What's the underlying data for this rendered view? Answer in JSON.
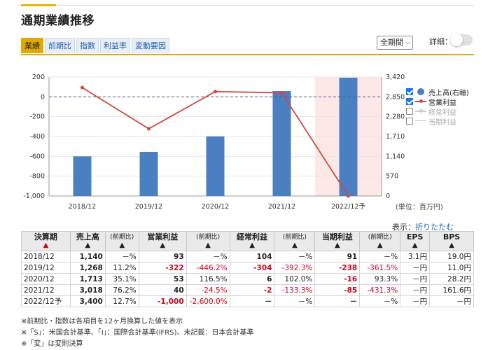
{
  "title": "通期業績推移",
  "tabs": [
    {
      "label": "業績",
      "active": true
    },
    {
      "label": "前期比",
      "active": false
    },
    {
      "label": "指数",
      "active": false
    },
    {
      "label": "利益率",
      "active": false
    },
    {
      "label": "変動要因",
      "active": false
    }
  ],
  "period_select": {
    "value": "全期間",
    "icon": "chevron-down-icon"
  },
  "detail_toggle": {
    "label": "詳細：",
    "on": false
  },
  "chart_data": {
    "type": "bar",
    "categories": [
      "2018/12",
      "2019/12",
      "2020/12",
      "2021/12",
      "2022/12予"
    ],
    "series": [
      {
        "name": "売上高(右軸)",
        "type": "bar",
        "axis": "right",
        "values": [
          1140,
          1268,
          1713,
          3018,
          3400
        ],
        "color": "#4a7fc1"
      },
      {
        "name": "営業利益",
        "type": "line",
        "axis": "left",
        "values": [
          93,
          -322,
          53,
          40,
          -1000
        ],
        "color": "#cf4a3d"
      }
    ],
    "left_axis": {
      "min": -1000,
      "max": 200,
      "ticks": [
        "200",
        "0",
        "-200",
        "-400",
        "-600",
        "-800",
        "-1,000"
      ]
    },
    "right_axis": {
      "min": 0,
      "max": 3420,
      "ticks": [
        "3,420",
        "2,850",
        "2,280",
        "1,710",
        "1,140",
        "570",
        "0"
      ]
    },
    "forecast_highlight_color": "#fde8e8",
    "zero_line": "dashed"
  },
  "legend": [
    {
      "label": "売上高(右軸)",
      "checked": true,
      "symbol": "bar"
    },
    {
      "label": "営業利益",
      "checked": true,
      "symbol": "line"
    },
    {
      "label": "経常利益",
      "checked": false,
      "symbol": "lineoff"
    },
    {
      "label": "当期利益",
      "checked": false,
      "symbol": "dashoff"
    }
  ],
  "unit_label": "(単位：百万円)",
  "display": {
    "label": "表示：",
    "link": "折りたたむ"
  },
  "table": {
    "headers": {
      "period": "決算期",
      "sales": "売上高",
      "yoy": "(前期比)",
      "operating": "営業利益",
      "ordinary": "経常利益",
      "net": "当期利益",
      "eps": "EPS",
      "bps": "BPS"
    },
    "rows": [
      {
        "period": "2018/12",
        "sales": "1,140",
        "sales_yoy": "－%",
        "op": "93",
        "op_yoy": "－%",
        "ord": "104",
        "ord_yoy": "－%",
        "net": "91",
        "net_yoy": "－%",
        "eps": "3.1円",
        "bps": "19.0円"
      },
      {
        "period": "2019/12",
        "sales": "1,268",
        "sales_yoy": "11.2%",
        "op": "-322",
        "op_yoy": "-446.2%",
        "ord": "-304",
        "ord_yoy": "-392.3%",
        "net": "-238",
        "net_yoy": "-361.5%",
        "eps": "－円",
        "bps": "11.0円"
      },
      {
        "period": "2020/12",
        "sales": "1,713",
        "sales_yoy": "35.1%",
        "op": "53",
        "op_yoy": "116.5%",
        "ord": "6",
        "ord_yoy": "102.0%",
        "net": "-16",
        "net_yoy": "93.3%",
        "eps": "－円",
        "bps": "28.2円"
      },
      {
        "period": "2021/12",
        "sales": "3,018",
        "sales_yoy": "76.2%",
        "op": "40",
        "op_yoy": "-24.5%",
        "ord": "-2",
        "ord_yoy": "-133.3%",
        "net": "-85",
        "net_yoy": "-431.3%",
        "eps": "－円",
        "bps": "161.6円"
      },
      {
        "period": "2022/12予",
        "sales": "3,400",
        "sales_yoy": "12.7%",
        "op": "-1,000",
        "op_yoy": "-2,600.0%",
        "ord": "－",
        "ord_yoy": "－%",
        "net": "－",
        "net_yoy": "－%",
        "eps": "－円",
        "bps": "－円"
      }
    ]
  },
  "notes": [
    "※前期比・指数は各項目を12ヶ月換算した値を表示",
    "※「S」：米国会計基準、「I」：国際会計基準(IFRS)、未記載：日本会計基準",
    "※「変」は変則決算"
  ]
}
